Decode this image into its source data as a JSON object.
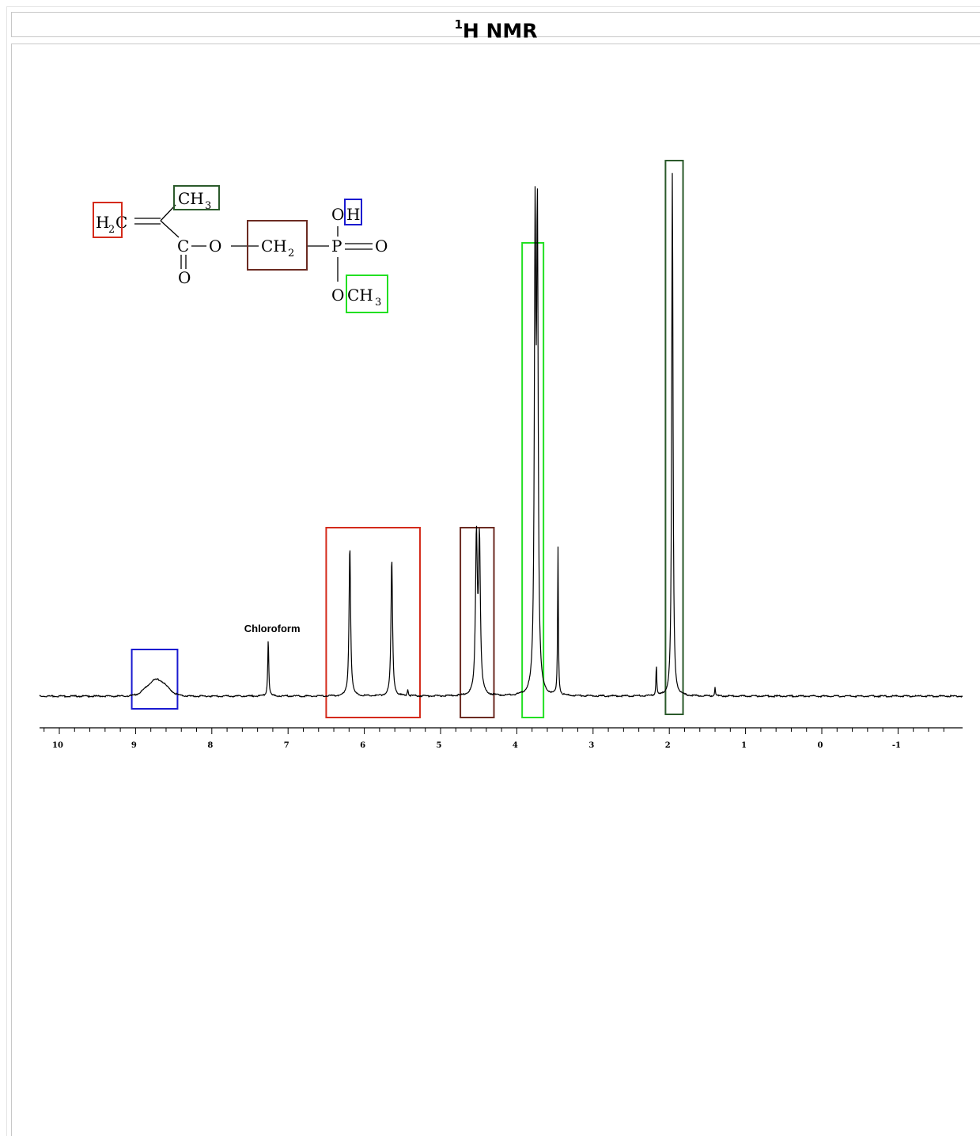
{
  "header": {
    "title_sup": "1",
    "title_main": "H NMR"
  },
  "molecule": {
    "h2c": "H",
    "h2c_sub": "2",
    "h2c_c": "C",
    "ch3_top": "CH",
    "ch3_top_sub": "3",
    "carbonyl_c": "C",
    "carbonyl_o": "O",
    "ester_o": "O",
    "ch2": "CH",
    "ch2_sub": "2",
    "phosphorus": "P",
    "po_o": "O",
    "oh_o": "O",
    "oh_h": "H",
    "och3_o": "O",
    "och3": "CH",
    "och3_sub": "3"
  },
  "colors": {
    "red": "#d42a1a",
    "brown": "#6b2b22",
    "light_green": "#22e022",
    "dark_green": "#2b5a2b",
    "blue": "#1a1ad0"
  },
  "chart_data": {
    "type": "line",
    "title": "1H NMR",
    "xlabel": "",
    "ylabel": "",
    "xlim": [
      10.3,
      -1.8
    ],
    "x_direction": "reversed",
    "x_ticks": [
      10,
      9,
      8,
      7,
      6,
      5,
      4,
      3,
      2,
      1,
      0,
      -1
    ],
    "x_tick_labels": [
      "10",
      "9",
      "8",
      "7",
      "6",
      "5",
      "4",
      "3",
      "2",
      "1",
      "0",
      "-1"
    ],
    "peaks": [
      {
        "ppm": 8.72,
        "height": 0.032,
        "width": 0.18,
        "broad": true
      },
      {
        "ppm": 7.26,
        "height": 0.108,
        "width": 0.008
      },
      {
        "ppm": 6.19,
        "height": 0.288,
        "width": 0.012
      },
      {
        "ppm": 5.64,
        "height": 0.263,
        "width": 0.012
      },
      {
        "ppm": 5.43,
        "height": 0.012,
        "width": 0.008
      },
      {
        "ppm": 4.53,
        "height": 0.296,
        "width": 0.014
      },
      {
        "ppm": 4.49,
        "height": 0.29,
        "width": 0.014
      },
      {
        "ppm": 3.76,
        "height": 0.858,
        "width": 0.012
      },
      {
        "ppm": 3.73,
        "height": 0.858,
        "width": 0.012
      },
      {
        "ppm": 3.46,
        "height": 0.284,
        "width": 0.006
      },
      {
        "ppm": 2.17,
        "height": 0.06,
        "width": 0.006
      },
      {
        "ppm": 1.96,
        "height": 1.0,
        "width": 0.01
      },
      {
        "ppm": 1.4,
        "height": 0.018,
        "width": 0.006
      }
    ],
    "annotations": [
      {
        "text": "Chloroform",
        "ppm": 7.26
      }
    ],
    "highlight_regions": [
      {
        "group": "OH",
        "color": "blue",
        "ppm_from": 9.05,
        "ppm_to": 8.45
      },
      {
        "group": "H2C=",
        "color": "red",
        "ppm_from": 6.5,
        "ppm_to": 5.27
      },
      {
        "group": "CH2",
        "color": "brown",
        "ppm_from": 4.74,
        "ppm_to": 4.3
      },
      {
        "group": "OCH3",
        "color": "light_green",
        "ppm_from": 3.93,
        "ppm_to": 3.65
      },
      {
        "group": "CH3",
        "color": "dark_green",
        "ppm_from": 2.05,
        "ppm_to": 1.82
      }
    ],
    "grid": false,
    "legend": "none"
  }
}
